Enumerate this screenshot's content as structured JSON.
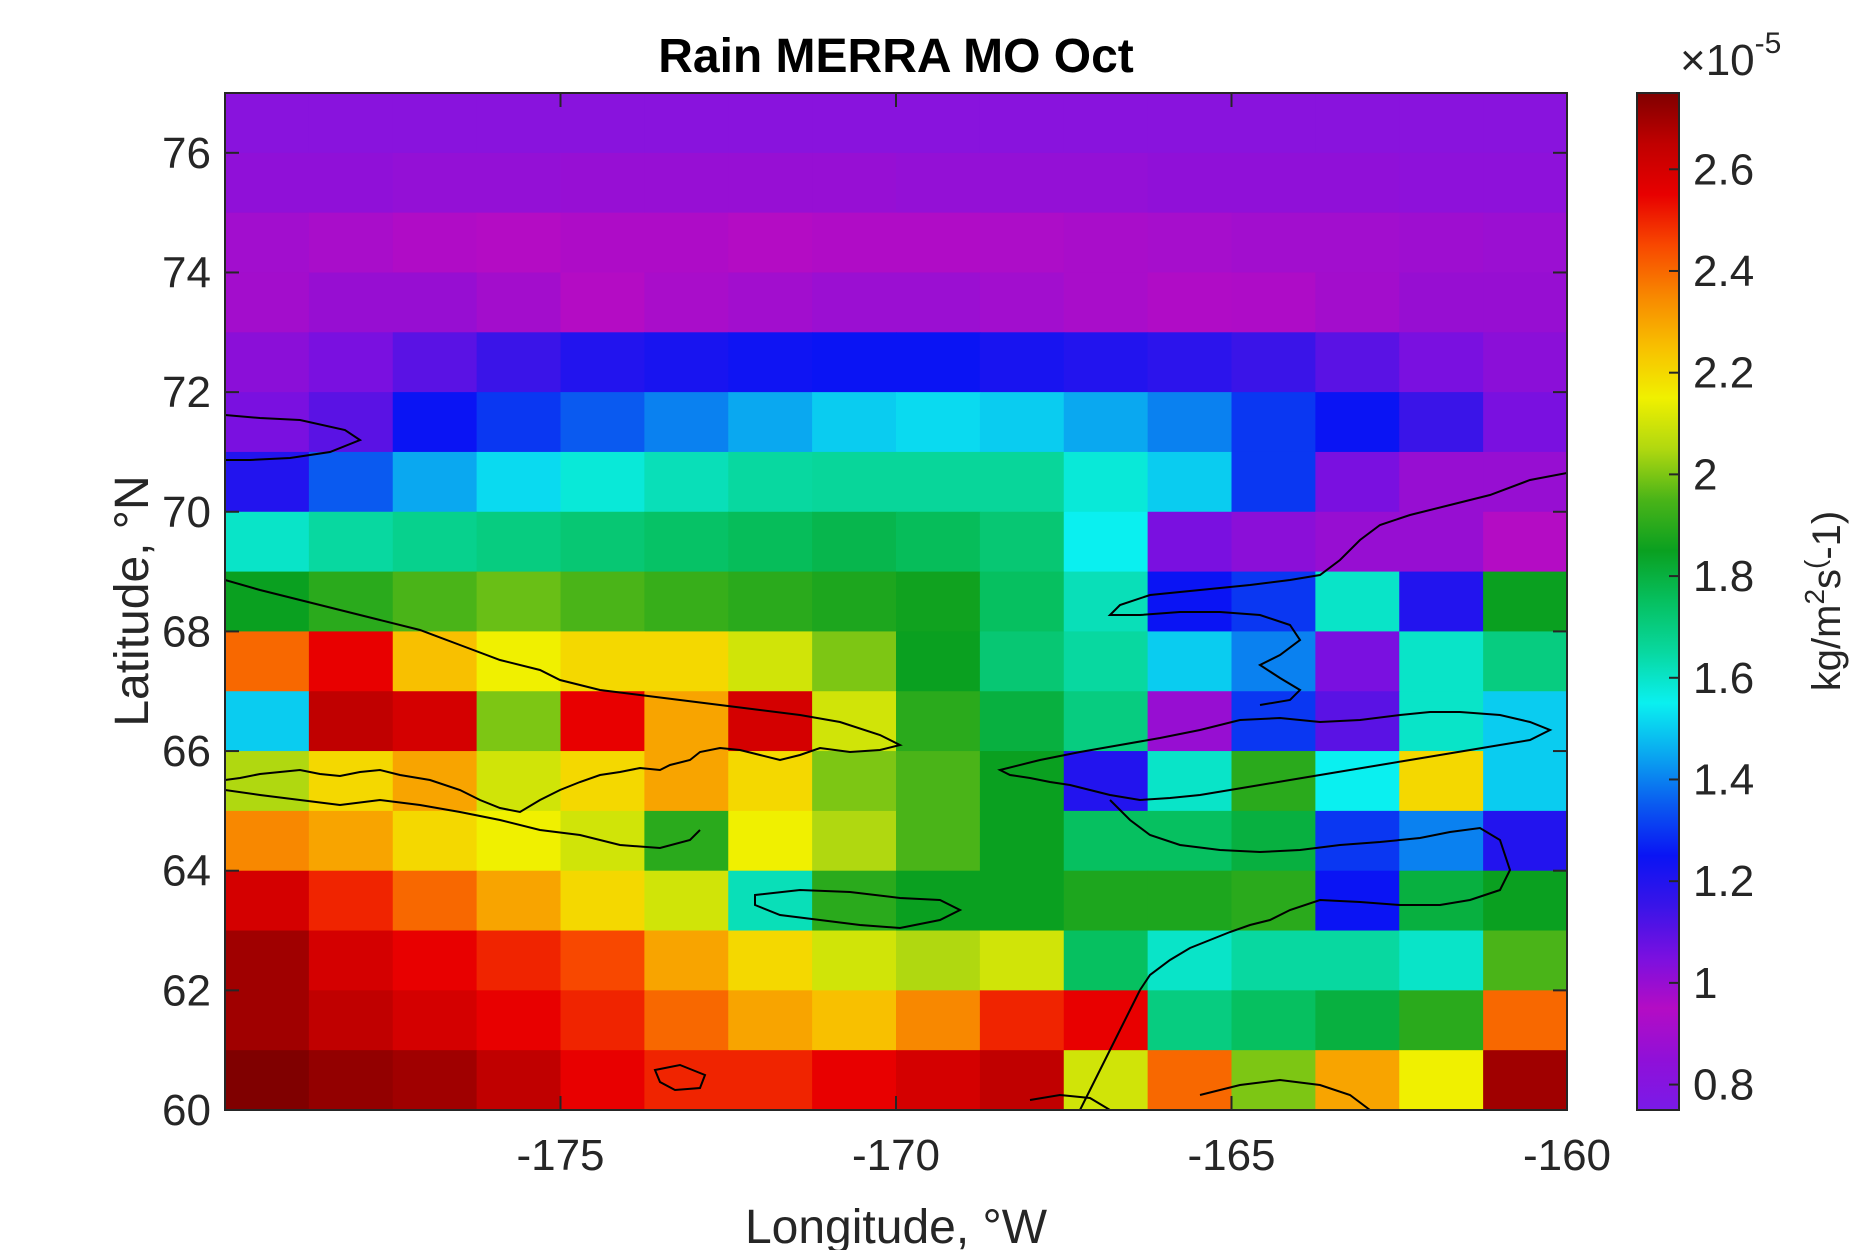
{
  "chart_data": {
    "type": "heatmap",
    "title": "Rain MERRA MO Oct",
    "xlabel": "Longitude, °W",
    "ylabel": "Latitude, °N",
    "xlim": [
      -180,
      -160
    ],
    "ylim": [
      60,
      77
    ],
    "x_ticks": [
      -175,
      -170,
      -165,
      -160
    ],
    "y_ticks": [
      60,
      62,
      64,
      66,
      68,
      70,
      72,
      74,
      76
    ],
    "colorbar": {
      "label_main": "kg/m",
      "label_sup1": "2",
      "label_mid": "s",
      "label_sup2": "(",
      "label_end": "-1)",
      "multiplier_prefix": "×10",
      "multiplier_exponent": "-5",
      "range": [
        0.75,
        2.75
      ],
      "ticks": [
        0.8,
        1,
        1.2,
        1.4,
        1.6,
        1.8,
        2,
        2.2,
        2.4,
        2.6
      ],
      "colormap": [
        "#7a1ae8",
        "#9010d8",
        "#b40cc4",
        "#7a10e0",
        "#3a14e8",
        "#0a14f4",
        "#0a5af0",
        "#0aa8f0",
        "#0af0f0",
        "#08d8a0",
        "#06c060",
        "#0aa020",
        "#4ab418",
        "#b0d810",
        "#f0f000",
        "#f8c000",
        "#f88800",
        "#f84800",
        "#e80000",
        "#c00000",
        "#800000"
      ]
    },
    "grid": {
      "lat_rows": [
        76.5,
        75.5,
        74.5,
        73.5,
        72.5,
        71.5,
        70.5,
        69.5,
        68.5,
        67.5,
        66.5,
        65.5,
        64.5,
        63.5,
        62.5,
        61.5,
        60.5
      ],
      "lon_cols": [
        -179.375,
        -178.125,
        -176.875,
        -175.625,
        -174.375,
        -173.125,
        -171.875,
        -170.625,
        -169.375,
        -168.125,
        -166.875,
        -165.625,
        -164.375,
        -163.125,
        -161.875,
        -160.625
      ],
      "values": [
        [
          0.82,
          0.82,
          0.82,
          0.82,
          0.82,
          0.82,
          0.82,
          0.82,
          0.82,
          0.82,
          0.82,
          0.82,
          0.82,
          0.82,
          0.82,
          0.82
        ],
        [
          0.85,
          0.85,
          0.86,
          0.86,
          0.87,
          0.87,
          0.87,
          0.87,
          0.86,
          0.86,
          0.86,
          0.85,
          0.85,
          0.85,
          0.84,
          0.84
        ],
        [
          0.9,
          0.92,
          0.94,
          0.95,
          0.96,
          0.96,
          0.95,
          0.94,
          0.94,
          0.93,
          0.92,
          0.91,
          0.9,
          0.9,
          0.89,
          0.88
        ],
        [
          0.98,
          1.0,
          1.0,
          0.98,
          0.95,
          0.92,
          0.9,
          0.88,
          0.88,
          0.9,
          0.92,
          0.94,
          0.96,
          0.98,
          1.0,
          1.0
        ],
        [
          1.02,
          1.05,
          1.1,
          1.15,
          1.2,
          1.22,
          1.24,
          1.25,
          1.25,
          1.22,
          1.2,
          1.18,
          1.15,
          1.1,
          1.05,
          1.02
        ],
        [
          1.05,
          1.1,
          1.25,
          1.3,
          1.35,
          1.4,
          1.45,
          1.5,
          1.52,
          1.5,
          1.45,
          1.4,
          1.3,
          1.25,
          1.15,
          1.05
        ],
        [
          1.2,
          1.35,
          1.45,
          1.52,
          1.58,
          1.62,
          1.65,
          1.66,
          1.66,
          1.66,
          1.58,
          1.5,
          1.3,
          1.05,
          1.0,
          1.0
        ],
        [
          1.6,
          1.65,
          1.68,
          1.7,
          1.72,
          1.74,
          1.76,
          1.78,
          1.76,
          1.72,
          1.55,
          1.05,
          1.02,
          1.0,
          1.0,
          0.95
        ],
        [
          1.85,
          1.9,
          1.95,
          1.98,
          1.95,
          1.92,
          1.9,
          1.88,
          1.86,
          1.75,
          1.62,
          1.25,
          1.3,
          1.6,
          1.2,
          1.85
        ],
        [
          2.4,
          2.55,
          2.25,
          2.15,
          2.2,
          2.2,
          2.1,
          2.0,
          1.85,
          1.72,
          1.65,
          1.5,
          1.4,
          1.05,
          1.6,
          1.7
        ],
        [
          1.5,
          2.65,
          2.6,
          2.0,
          2.55,
          2.3,
          2.6,
          2.1,
          1.9,
          1.8,
          1.7,
          1.0,
          1.3,
          1.1,
          1.6,
          1.5
        ],
        [
          2.05,
          2.2,
          2.3,
          2.1,
          2.2,
          2.3,
          2.2,
          2.0,
          1.95,
          1.85,
          1.2,
          1.6,
          1.9,
          1.55,
          2.2,
          1.5
        ],
        [
          2.35,
          2.3,
          2.2,
          2.15,
          2.1,
          1.9,
          2.15,
          2.05,
          1.95,
          1.85,
          1.75,
          1.75,
          1.8,
          1.3,
          1.4,
          1.2
        ],
        [
          2.6,
          2.5,
          2.4,
          2.3,
          2.2,
          2.1,
          1.62,
          1.9,
          1.85,
          1.85,
          1.88,
          1.88,
          1.9,
          1.25,
          1.8,
          1.85
        ],
        [
          2.7,
          2.6,
          2.55,
          2.5,
          2.45,
          2.3,
          2.2,
          2.1,
          2.05,
          2.1,
          1.75,
          1.6,
          1.65,
          1.65,
          1.6,
          1.95
        ],
        [
          2.7,
          2.65,
          2.6,
          2.55,
          2.5,
          2.4,
          2.3,
          2.25,
          2.35,
          2.5,
          2.55,
          1.7,
          1.75,
          1.8,
          1.9,
          2.4
        ],
        [
          2.75,
          2.72,
          2.7,
          2.65,
          2.55,
          2.5,
          2.5,
          2.55,
          2.6,
          2.65,
          2.1,
          2.4,
          2.0,
          2.3,
          2.15,
          2.7
        ]
      ]
    }
  }
}
